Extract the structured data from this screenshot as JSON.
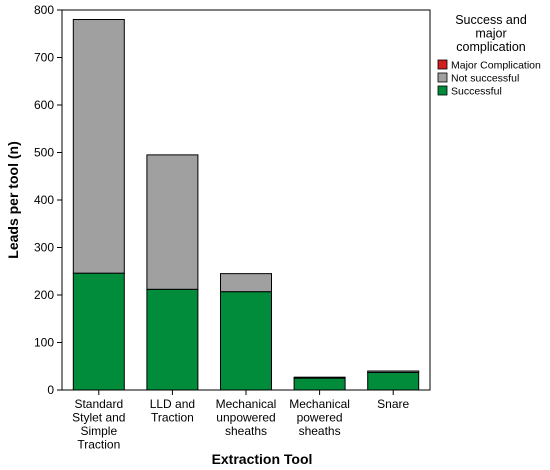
{
  "chart_data": {
    "type": "bar",
    "stacked": true,
    "xlabel": "Extraction Tool",
    "ylabel": "Leads per tool (n)",
    "ylim": [
      0,
      800
    ],
    "yticks": [
      0,
      100,
      200,
      300,
      400,
      500,
      600,
      700,
      800
    ],
    "grid": false,
    "categories": [
      [
        "Standard",
        "Stylet and",
        "Simple",
        "Traction"
      ],
      [
        "LLD and",
        "Traction"
      ],
      [
        "Mechanical",
        "unpowered",
        "sheaths"
      ],
      [
        "Mechanical",
        "powered",
        "sheaths"
      ],
      [
        "Snare"
      ]
    ],
    "series": [
      {
        "name": "Successful",
        "color": "#008c3a",
        "values": [
          246,
          212,
          207,
          25,
          37
        ]
      },
      {
        "name": "Not successful",
        "color": "#a0a0a0",
        "values": [
          534,
          283,
          38,
          2,
          3
        ]
      },
      {
        "name": "Major Complication",
        "color": "#d21e1e",
        "values": [
          0,
          0,
          0,
          0,
          0
        ]
      }
    ],
    "legend": {
      "title": [
        "Success and",
        "major",
        "complication"
      ],
      "placement": "right",
      "entries": [
        {
          "label": "Major Complication",
          "color": "#d21e1e"
        },
        {
          "label": "Not successful",
          "color": "#a0a0a0"
        },
        {
          "label": "Successful",
          "color": "#008c3a"
        }
      ]
    }
  }
}
